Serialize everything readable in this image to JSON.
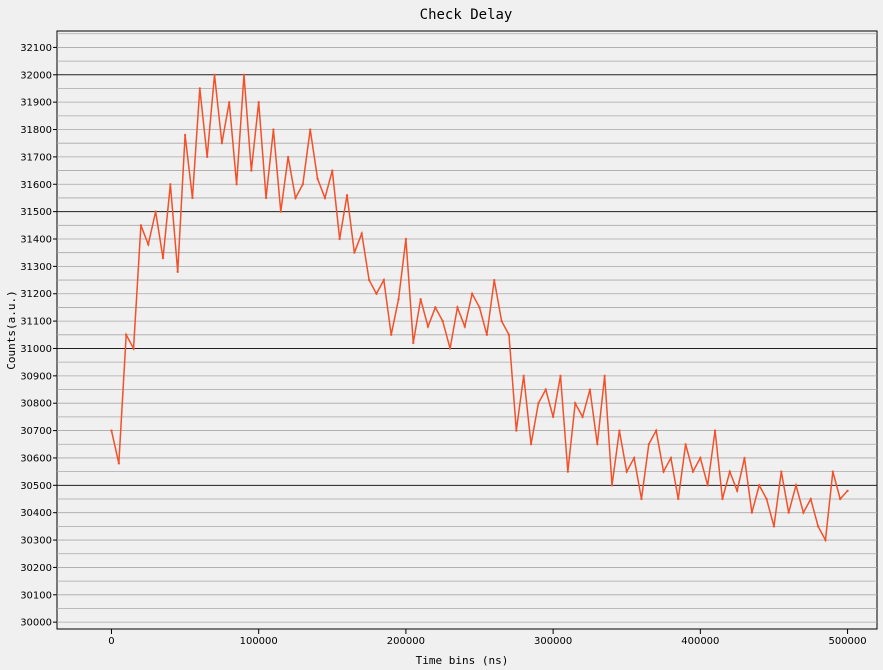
{
  "chart_data": {
    "type": "line",
    "title": "Check Delay",
    "xlabel": "Time bins (ns)",
    "ylabel": "Counts(a.u.)",
    "xlim": [
      -37000,
      520000
    ],
    "ylim": [
      29975,
      32160
    ],
    "xticks": [
      0,
      100000,
      200000,
      300000,
      400000,
      500000
    ],
    "xtick_labels": [
      "0",
      "100000",
      "200000",
      "300000",
      "400000",
      "500000"
    ],
    "yticks": [
      30000,
      30100,
      30200,
      30300,
      30400,
      30500,
      30600,
      30700,
      30800,
      30900,
      31000,
      31100,
      31200,
      31300,
      31400,
      31500,
      31600,
      31700,
      31800,
      31900,
      32000,
      32100
    ],
    "ytick_labels": [
      "30000",
      "30100",
      "30200",
      "30300",
      "30400",
      "30500",
      "30600",
      "30700",
      "30800",
      "30900",
      "31000",
      "31100",
      "31200",
      "31300",
      "31400",
      "31500",
      "31600",
      "31700",
      "31800",
      "31900",
      "32000",
      "32100"
    ],
    "major_gridlines": [
      30500,
      31000,
      31500,
      32000
    ],
    "grid": true,
    "line_color": "#f4502a",
    "x": [
      0,
      5000,
      10000,
      15000,
      20000,
      25000,
      30000,
      35000,
      40000,
      45000,
      50000,
      55000,
      60000,
      65000,
      70000,
      75000,
      80000,
      85000,
      90000,
      95000,
      100000,
      105000,
      110000,
      115000,
      120000,
      125000,
      130000,
      135000,
      140000,
      145000,
      150000,
      155000,
      160000,
      165000,
      170000,
      175000,
      180000,
      185000,
      190000,
      195000,
      200000,
      205000,
      210000,
      215000,
      220000,
      225000,
      230000,
      235000,
      240000,
      245000,
      250000,
      255000,
      260000,
      265000,
      270000,
      275000,
      280000,
      285000,
      290000,
      295000,
      300000,
      305000,
      310000,
      315000,
      320000,
      325000,
      330000,
      335000,
      340000,
      345000,
      350000,
      355000,
      360000,
      365000,
      370000,
      375000,
      380000,
      385000,
      390000,
      395000,
      400000,
      405000,
      410000,
      415000,
      420000,
      425000,
      430000,
      435000,
      440000,
      445000,
      450000,
      455000,
      460000,
      465000,
      470000,
      475000,
      480000,
      485000,
      490000,
      495000,
      500000
    ],
    "y": [
      30700,
      30580,
      31050,
      31000,
      31450,
      31380,
      31500,
      31330,
      31600,
      31280,
      31780,
      31550,
      31950,
      31700,
      32000,
      31750,
      31900,
      31600,
      32000,
      31650,
      31900,
      31550,
      31800,
      31500,
      31700,
      31550,
      31600,
      31800,
      31620,
      31550,
      31650,
      31400,
      31560,
      31350,
      31420,
      31250,
      31200,
      31250,
      31050,
      31180,
      31400,
      31020,
      31180,
      31080,
      31150,
      31100,
      31000,
      31150,
      31080,
      31200,
      31150,
      31050,
      31250,
      31100,
      31050,
      30700,
      30900,
      30650,
      30800,
      30850,
      30750,
      30900,
      30550,
      30800,
      30750,
      30850,
      30650,
      30900,
      30500,
      30700,
      30550,
      30600,
      30450,
      30650,
      30700,
      30550,
      30600,
      30450,
      30650,
      30550,
      30600,
      30500,
      30700,
      30450,
      30550,
      30480,
      30600,
      30400,
      30500,
      30450,
      30350,
      30550,
      30400,
      30500,
      30400,
      30450,
      30350,
      30300,
      30550,
      30450,
      30480
    ]
  }
}
